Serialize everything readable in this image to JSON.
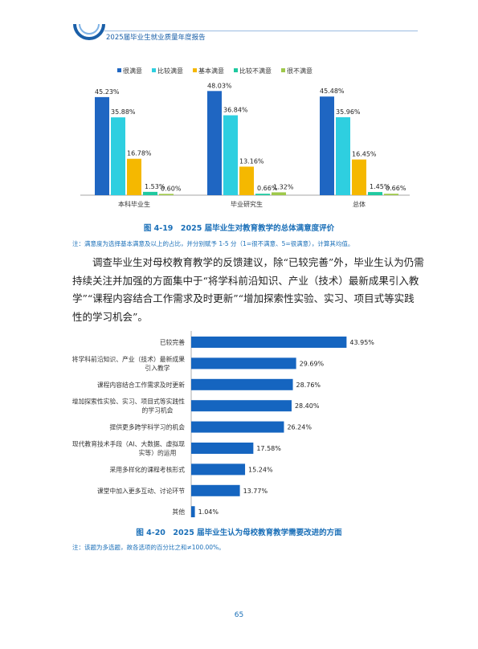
{
  "header": {
    "title": "2025届毕业生就业质量年度报告"
  },
  "figure1": {
    "caption": "图 4-19　2025 届毕业生对教育教学的总体满意度评价",
    "note": "注：满意度为选择基本满意及以上的占比，并分别赋予 1-5 分（1=很不满意、5=很满意），计算其均值。"
  },
  "paragraph": {
    "lines": [
      "　　调查毕业生对母校教育教学的反馈建议，除“已较完善”外，毕业生认为仍需",
      "持续关注并加强的方面集中于“将学科前沿知识、产业（技术）最新成果引入教",
      "学”“课程内容结合工作需求及时更新”“增加探索性实验、实习、项目式等实践",
      "性的学习机会”。"
    ]
  },
  "figure2": {
    "caption": "图 4-20　2025 届毕业生认为母校教育教学需要改进的方面",
    "note": "注：该题为多选题，故各选项的百分比之和≠100.00%。"
  },
  "page_number": "65",
  "chart_data": [
    {
      "type": "bar",
      "categories": [
        "本科毕业生",
        "毕业研究生",
        "总体"
      ],
      "series": [
        {
          "name": "很满意",
          "color": "#1f66c2",
          "values": [
            45.23,
            48.03,
            45.48
          ],
          "labels": [
            "45.23%",
            "48.03%",
            "45.48%"
          ]
        },
        {
          "name": "比较满意",
          "color": "#2ecfe0",
          "values": [
            35.88,
            36.84,
            35.96
          ],
          "labels": [
            "35.88%",
            "36.84%",
            "35.96%"
          ]
        },
        {
          "name": "基本满意",
          "color": "#f5b800",
          "values": [
            16.78,
            13.16,
            16.45
          ],
          "labels": [
            "16.78%",
            "13.16%",
            "16.45%"
          ]
        },
        {
          "name": "比较不满意",
          "color": "#1fc9a0",
          "values": [
            1.53,
            0.66,
            1.45
          ],
          "labels": [
            "1.53%",
            "0.66%",
            "1.45%"
          ]
        },
        {
          "name": "很不满意",
          "color": "#9ec84a",
          "values": [
            0.6,
            1.32,
            0.66
          ],
          "labels": [
            "0.60%",
            "1.32%",
            "0.66%"
          ]
        }
      ],
      "ylim": [
        0,
        50
      ],
      "legend_position": "top",
      "grid": false
    },
    {
      "type": "bar",
      "orientation": "horizontal",
      "color": "#1565c0",
      "categories": [
        [
          "已较完善"
        ],
        [
          "将学科前沿知识、产业（技术）最新成果",
          "引入教学"
        ],
        [
          "课程内容结合工作需求及时更新"
        ],
        [
          "增加探索性实验、实习、项目式等实践性",
          "的学习机会"
        ],
        [
          "提供更多跨学科学习的机会"
        ],
        [
          "现代教育技术手段（AI、大数据、虚拟现",
          "实等）的运用"
        ],
        [
          "采用多样化的课程考核形式"
        ],
        [
          "课堂中加入更多互动、讨论环节"
        ],
        [
          "其他"
        ]
      ],
      "values": [
        43.95,
        29.69,
        28.76,
        28.4,
        26.24,
        17.58,
        15.24,
        13.77,
        1.04
      ],
      "labels": [
        "43.95%",
        "29.69%",
        "28.76%",
        "28.40%",
        "26.24%",
        "17.58%",
        "15.24%",
        "13.77%",
        "1.04%"
      ],
      "xlim": [
        0,
        50
      ],
      "grid": false
    }
  ]
}
